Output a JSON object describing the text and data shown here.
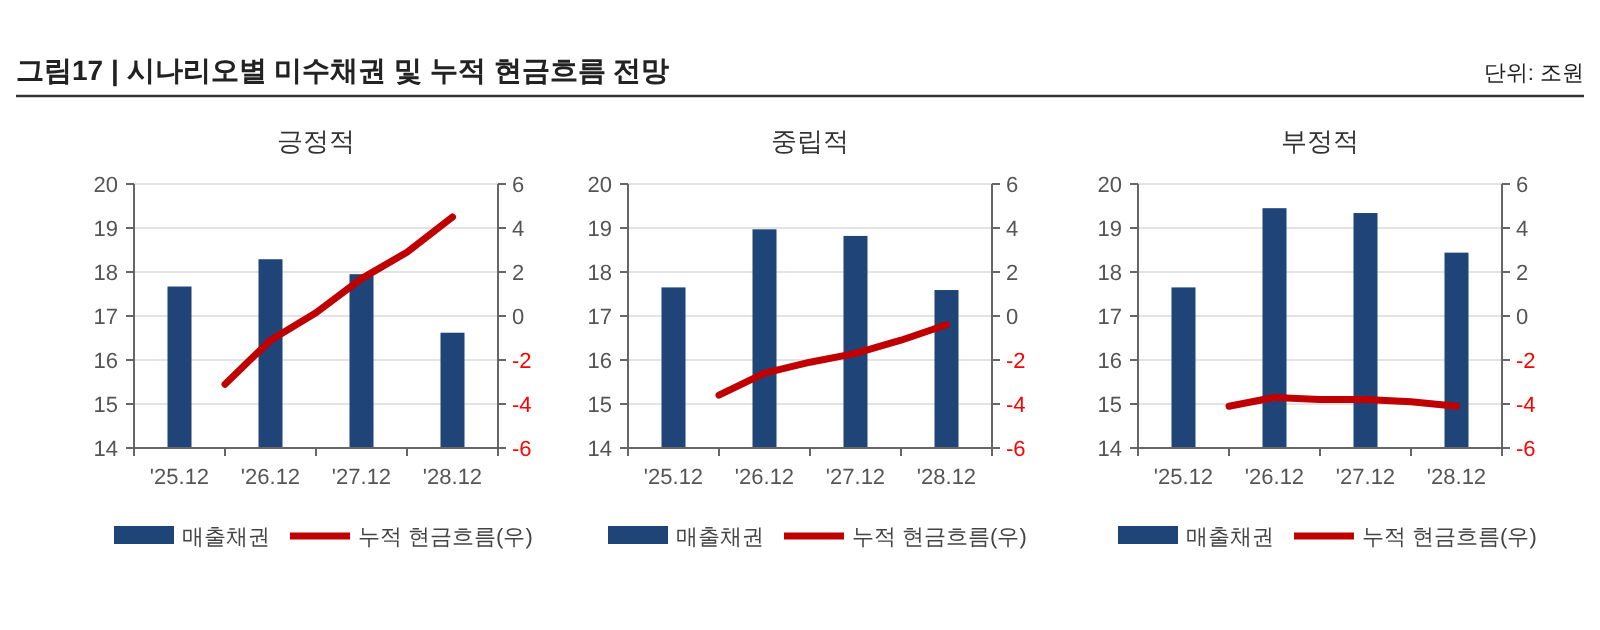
{
  "chart_data": [
    {
      "type": "other",
      "title": "그림17 | 시나리오별 미수채권 및 누적 현금흐름 전망",
      "annotations": [
        "단위: 조원"
      ]
    },
    {
      "type": "bar",
      "title": "긍정적",
      "categories": [
        "'25.12",
        null,
        "'26.12",
        null,
        "'27.12",
        null,
        "'28.12"
      ],
      "ylim": [
        14,
        20
      ],
      "yticks": [
        14,
        15,
        16,
        17,
        18,
        19,
        20
      ],
      "y2lim": [
        -6,
        6
      ],
      "y2ticks": [
        -6,
        -4,
        -2,
        0,
        2,
        4,
        6
      ],
      "grid": "y",
      "legend": "bottom",
      "series": [
        {
          "name": "매출채권",
          "type": "bar",
          "color": "#1f4477",
          "values": [
            17.67,
            null,
            18.29,
            null,
            17.95,
            null,
            16.62
          ]
        },
        {
          "name": "누적 현금흐름(우)",
          "type": "line",
          "axis": "y2",
          "color": "#c00000",
          "marker": "none",
          "line_style": "solid",
          "values": [
            null,
            -3.1,
            -1.1,
            0.15,
            1.7,
            2.9,
            4.5
          ]
        }
      ]
    },
    {
      "type": "bar",
      "title": "중립적",
      "categories": [
        "'25.12",
        null,
        "'26.12",
        null,
        "'27.12",
        null,
        "'28.12"
      ],
      "ylim": [
        14,
        20
      ],
      "yticks": [
        14,
        15,
        16,
        17,
        18,
        19,
        20
      ],
      "y2lim": [
        -6,
        6
      ],
      "y2ticks": [
        -6,
        -4,
        -2,
        0,
        2,
        4,
        6
      ],
      "grid": "y",
      "legend": "bottom",
      "series": [
        {
          "name": "매출채권",
          "type": "bar",
          "color": "#1f4477",
          "values": [
            17.65,
            null,
            18.97,
            null,
            18.82,
            null,
            17.59
          ]
        },
        {
          "name": "누적 현금흐름(우)",
          "type": "line",
          "axis": "y2",
          "color": "#c00000",
          "marker": "none",
          "line_style": "solid",
          "values": [
            null,
            -3.6,
            -2.6,
            -2.1,
            -1.7,
            -1.1,
            -0.4
          ]
        }
      ]
    },
    {
      "type": "bar",
      "title": "부정적",
      "categories": [
        "'25.12",
        null,
        "'26.12",
        null,
        "'27.12",
        null,
        "'28.12"
      ],
      "ylim": [
        14,
        20
      ],
      "yticks": [
        14,
        15,
        16,
        17,
        18,
        19,
        20
      ],
      "y2lim": [
        -6,
        6
      ],
      "y2ticks": [
        -6,
        -4,
        -2,
        0,
        2,
        4,
        6
      ],
      "grid": "y",
      "legend": "bottom",
      "series": [
        {
          "name": "매출채권",
          "type": "bar",
          "color": "#1f4477",
          "values": [
            17.65,
            null,
            19.45,
            null,
            19.34,
            null,
            18.44
          ]
        },
        {
          "name": "누적 현금흐름(우)",
          "type": "line",
          "axis": "y2",
          "color": "#c00000",
          "marker": "none",
          "line_style": "solid",
          "values": [
            null,
            -4.1,
            -3.7,
            -3.8,
            -3.8,
            -3.9,
            -4.1
          ]
        }
      ]
    }
  ]
}
